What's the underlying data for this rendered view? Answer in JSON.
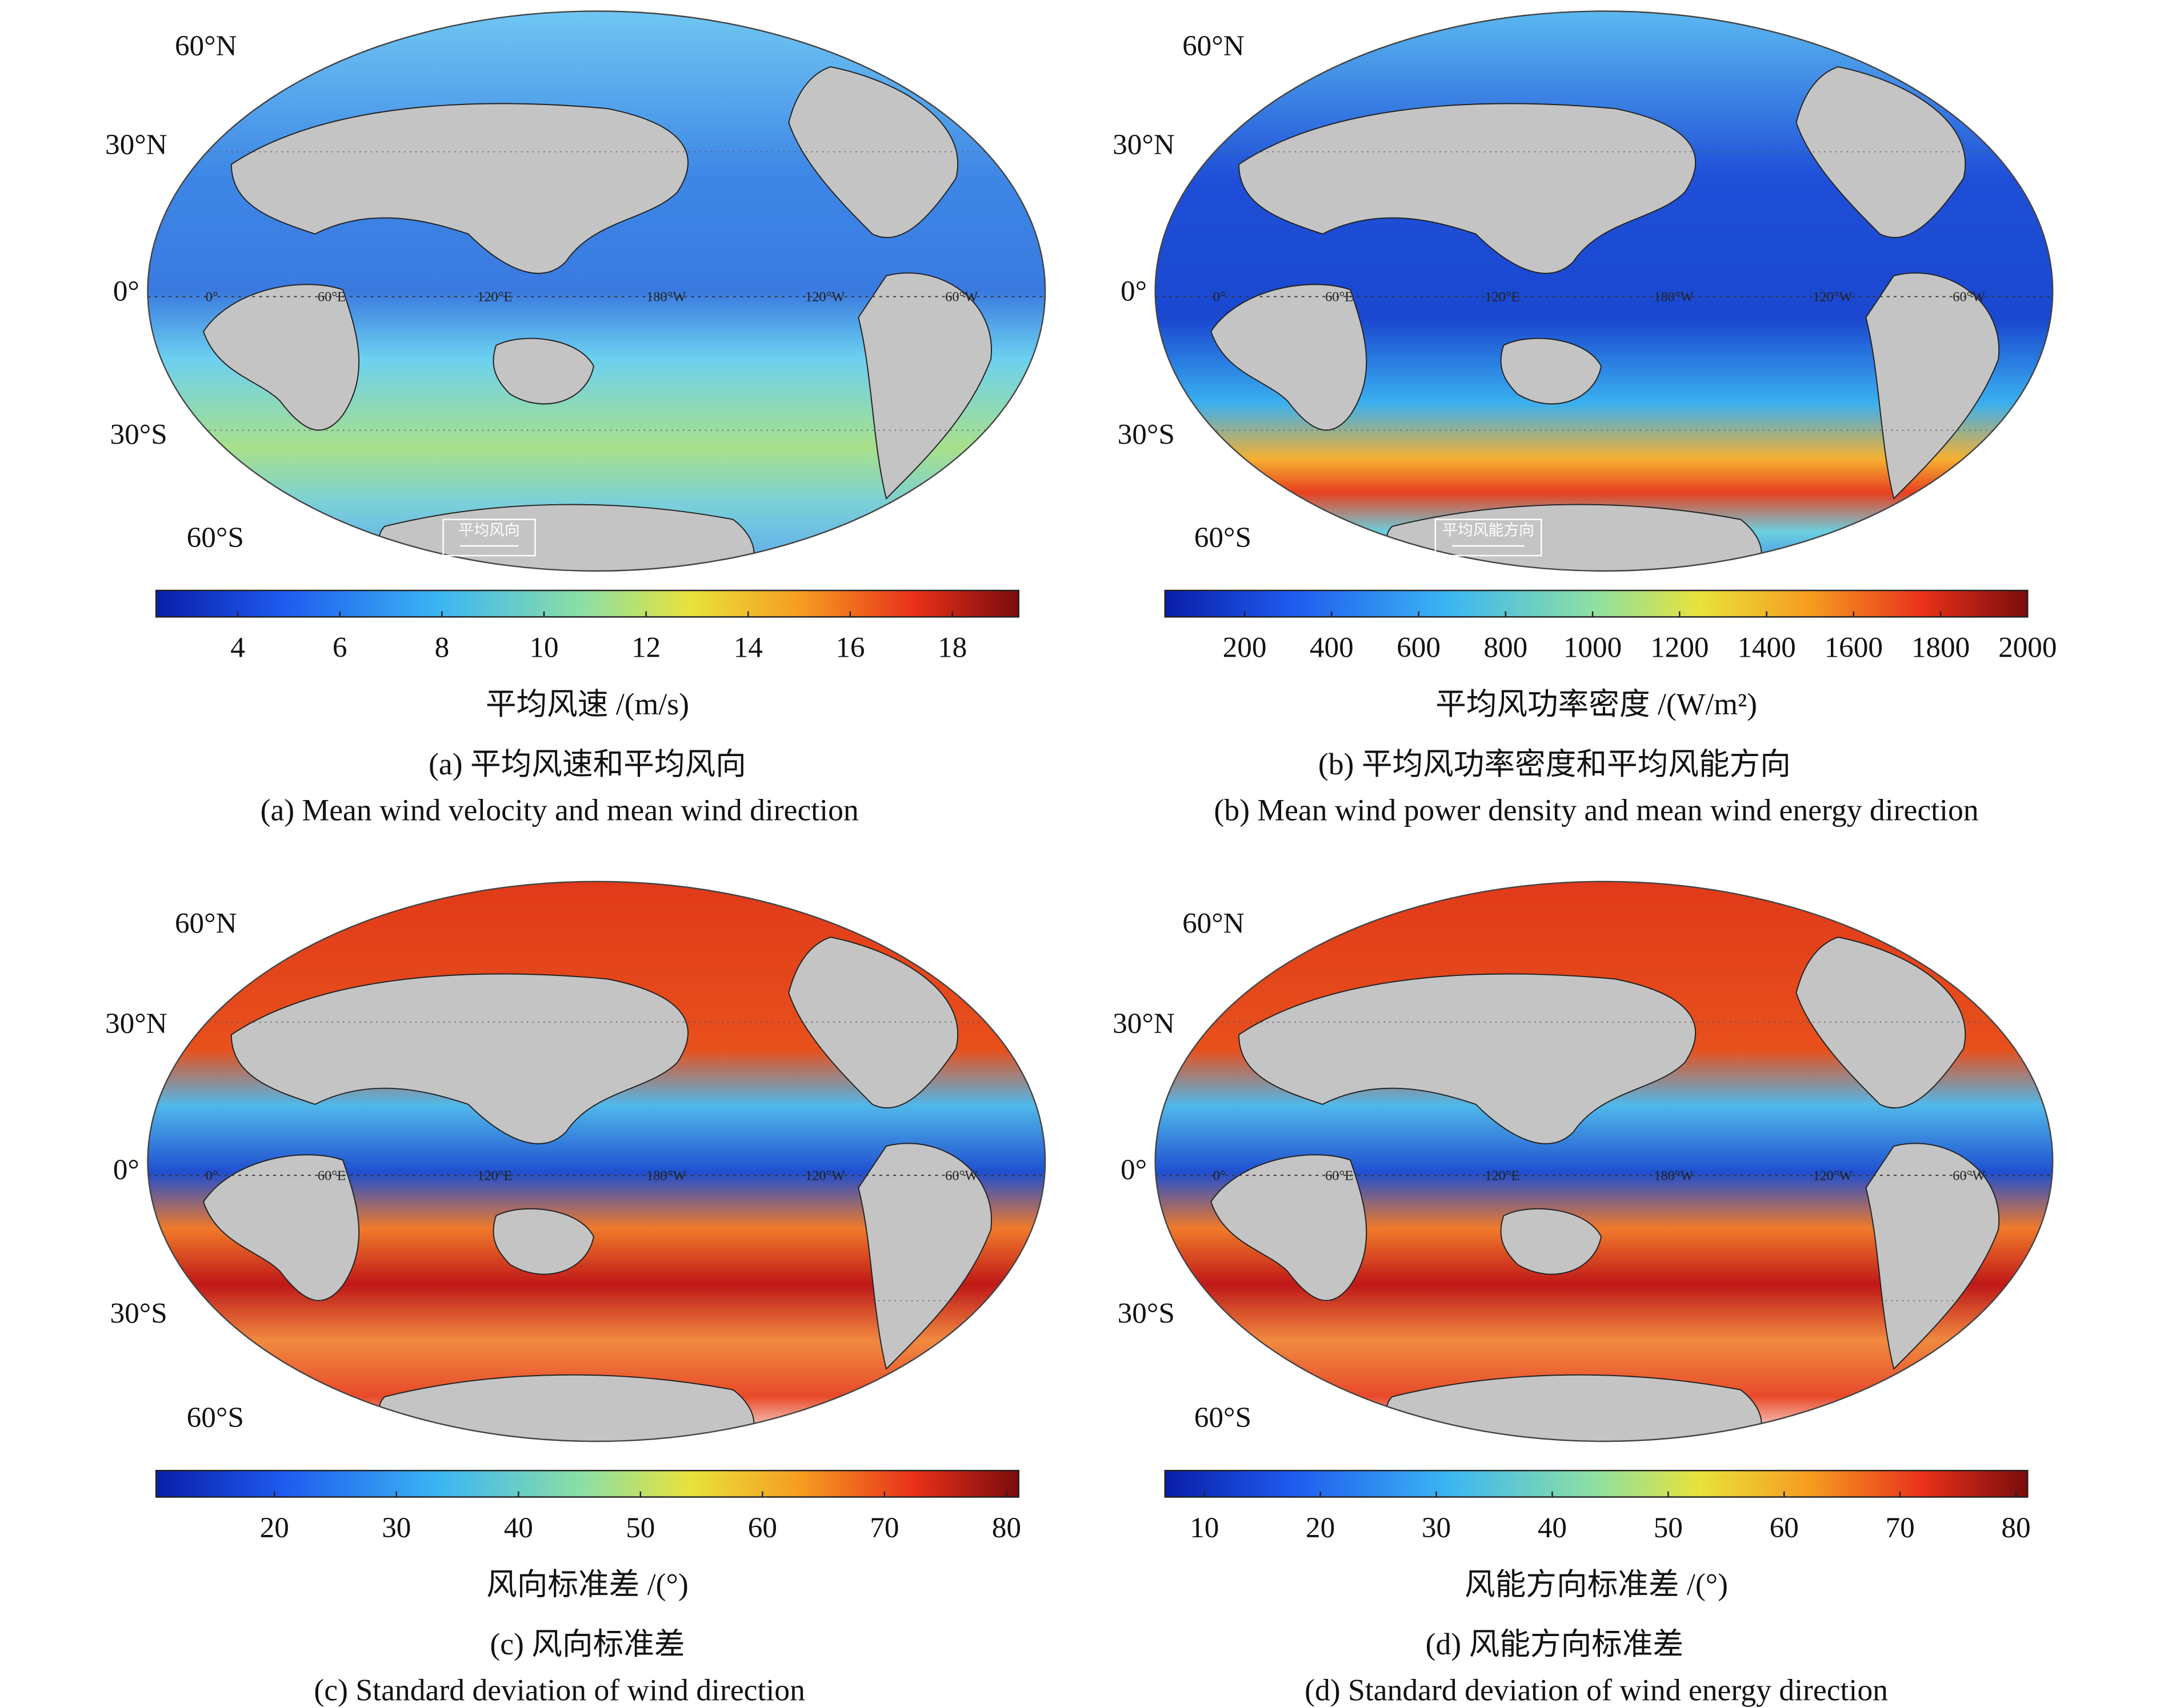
{
  "panels": [
    {
      "lat_labels": [
        "60°N",
        "30°N",
        "0°",
        "30°S",
        "60°S"
      ],
      "lon_labels": [
        "0°",
        "60°E",
        "120°E",
        "180°W",
        "120°W",
        "60°W"
      ],
      "legend_box": "平均风向",
      "colorbar": {
        "lim": [
          2.4,
          19.3
        ],
        "ticks": [
          4,
          6,
          8,
          10,
          12,
          14,
          16,
          18
        ],
        "label": "平均风速 /(m/s)"
      },
      "caption_cn": "(a) 平均风速和平均风向",
      "caption_en": "(a) Mean wind velocity and mean wind direction"
    },
    {
      "lat_labels": [
        "60°N",
        "30°N",
        "0°",
        "30°S",
        "60°S"
      ],
      "lon_labels": [
        "0°",
        "60°E",
        "120°E",
        "180°W",
        "120°W",
        "60°W"
      ],
      "legend_box": "平均风能方向",
      "colorbar": {
        "lim": [
          17,
          2000
        ],
        "ticks": [
          200,
          400,
          600,
          800,
          1000,
          1200,
          1400,
          1600,
          1800,
          2000
        ],
        "label": "平均风功率密度 /(W/m²)"
      },
      "caption_cn": "(b) 平均风功率密度和平均风能方向",
      "caption_en": "(b) Mean wind power density and mean wind energy direction"
    },
    {
      "lat_labels": [
        "60°N",
        "30°N",
        "0°",
        "30°S",
        "60°S"
      ],
      "lon_labels": [
        "0°",
        "60°E",
        "120°E",
        "180°W",
        "120°W",
        "60°W"
      ],
      "colorbar": {
        "lim": [
          10.3,
          81
        ],
        "ticks": [
          20,
          30,
          40,
          50,
          60,
          70,
          80
        ],
        "label": "风向标准差 /(°)"
      },
      "caption_cn": "(c) 风向标准差",
      "caption_en": "(c) Standard deviation of wind direction"
    },
    {
      "lat_labels": [
        "60°N",
        "30°N",
        "0°",
        "30°S",
        "60°S"
      ],
      "lon_labels": [
        "0°",
        "60°E",
        "120°E",
        "180°W",
        "120°W",
        "60°W"
      ],
      "colorbar": {
        "lim": [
          6.6,
          81
        ],
        "ticks": [
          10,
          20,
          30,
          40,
          50,
          60,
          70,
          80
        ],
        "label": "风能方向标准差 /(°)"
      },
      "caption_cn": "(d) 风能方向标准差",
      "caption_en": "(d) Standard deviation of wind energy direction"
    }
  ]
}
